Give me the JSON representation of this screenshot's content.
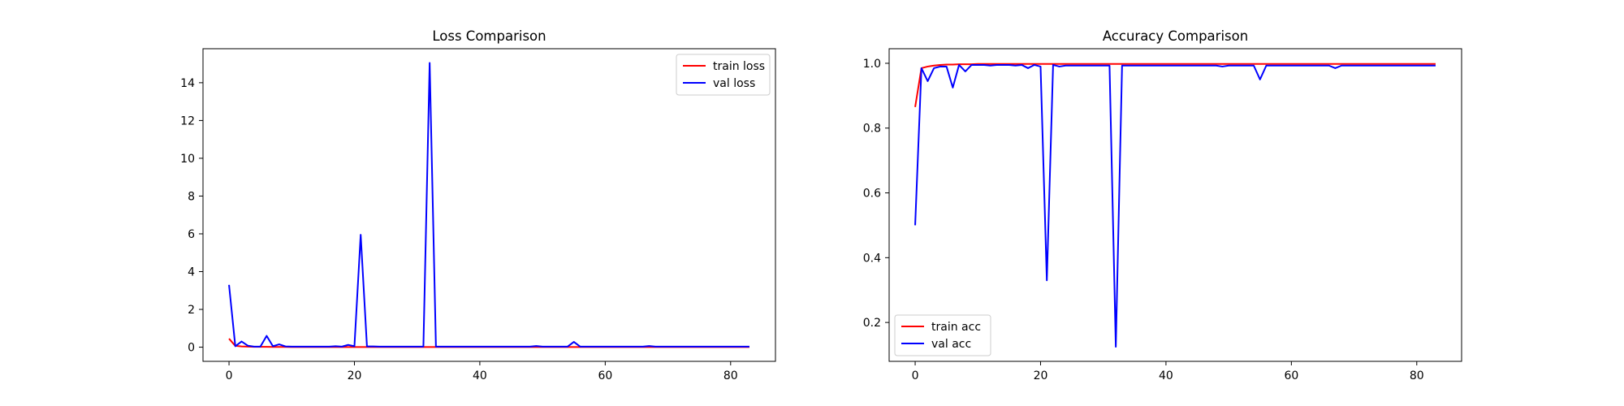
{
  "chart_data": [
    {
      "type": "line",
      "title": "Loss Comparison",
      "xlabel": "",
      "ylabel": "",
      "xlim": [
        -4.15,
        87.15
      ],
      "ylim": [
        -0.75,
        15.8
      ],
      "xticks": [
        0,
        20,
        40,
        60,
        80
      ],
      "yticks": [
        0,
        2,
        4,
        6,
        8,
        10,
        12,
        14
      ],
      "grid": false,
      "legend": "top-right",
      "series": [
        {
          "name": "train loss",
          "color": "#ff0000",
          "x": [
            0,
            1,
            2,
            3,
            4,
            5,
            6,
            7,
            8,
            9,
            10,
            11,
            12,
            13,
            14,
            15,
            16,
            17,
            18,
            19,
            20,
            21,
            22,
            23,
            24,
            25,
            26,
            27,
            28,
            29,
            30,
            31,
            32,
            33,
            34,
            35,
            36,
            37,
            38,
            39,
            40,
            41,
            42,
            43,
            44,
            45,
            46,
            47,
            48,
            49,
            50,
            51,
            52,
            53,
            54,
            55,
            56,
            57,
            58,
            59,
            60,
            61,
            62,
            63,
            64,
            65,
            66,
            67,
            68,
            69,
            70,
            71,
            72,
            73,
            74,
            75,
            76,
            77,
            78,
            79,
            80,
            81,
            82,
            83
          ],
          "values": [
            0.45,
            0.07,
            0.04,
            0.03,
            0.02,
            0.02,
            0.02,
            0.015,
            0.015,
            0.015,
            0.01,
            0.01,
            0.01,
            0.01,
            0.01,
            0.01,
            0.01,
            0.01,
            0.01,
            0.01,
            0.01,
            0.01,
            0.01,
            0.01,
            0.01,
            0.01,
            0.01,
            0.01,
            0.01,
            0.01,
            0.01,
            0.01,
            0.01,
            0.01,
            0.01,
            0.01,
            0.01,
            0.01,
            0.01,
            0.01,
            0.01,
            0.01,
            0.01,
            0.01,
            0.01,
            0.01,
            0.01,
            0.01,
            0.01,
            0.01,
            0.01,
            0.01,
            0.01,
            0.01,
            0.01,
            0.01,
            0.01,
            0.01,
            0.01,
            0.01,
            0.01,
            0.01,
            0.01,
            0.01,
            0.01,
            0.01,
            0.01,
            0.01,
            0.01,
            0.01,
            0.01,
            0.01,
            0.01,
            0.01,
            0.01,
            0.01,
            0.01,
            0.01,
            0.01,
            0.01,
            0.01,
            0.01,
            0.01,
            0.01
          ]
        },
        {
          "name": "val loss",
          "color": "#0000ff",
          "x": [
            0,
            1,
            2,
            3,
            4,
            5,
            6,
            7,
            8,
            9,
            10,
            11,
            12,
            13,
            14,
            15,
            16,
            17,
            18,
            19,
            20,
            21,
            22,
            23,
            24,
            25,
            26,
            27,
            28,
            29,
            30,
            31,
            32,
            33,
            34,
            35,
            36,
            37,
            38,
            39,
            40,
            41,
            42,
            43,
            44,
            45,
            46,
            47,
            48,
            49,
            50,
            51,
            52,
            53,
            54,
            55,
            56,
            57,
            58,
            59,
            60,
            61,
            62,
            63,
            64,
            65,
            66,
            67,
            68,
            69,
            70,
            71,
            72,
            73,
            74,
            75,
            76,
            77,
            78,
            79,
            80,
            81,
            82,
            83
          ],
          "values": [
            3.3,
            0.05,
            0.3,
            0.08,
            0.03,
            0.03,
            0.6,
            0.05,
            0.15,
            0.04,
            0.03,
            0.03,
            0.03,
            0.03,
            0.03,
            0.03,
            0.03,
            0.05,
            0.03,
            0.12,
            0.05,
            5.95,
            0.04,
            0.04,
            0.03,
            0.03,
            0.03,
            0.03,
            0.03,
            0.03,
            0.03,
            0.03,
            15.05,
            0.03,
            0.03,
            0.03,
            0.03,
            0.03,
            0.03,
            0.03,
            0.03,
            0.03,
            0.03,
            0.03,
            0.03,
            0.03,
            0.03,
            0.03,
            0.03,
            0.06,
            0.03,
            0.03,
            0.03,
            0.03,
            0.03,
            0.28,
            0.03,
            0.03,
            0.03,
            0.03,
            0.03,
            0.03,
            0.03,
            0.03,
            0.03,
            0.03,
            0.03,
            0.06,
            0.03,
            0.03,
            0.03,
            0.03,
            0.03,
            0.03,
            0.03,
            0.03,
            0.03,
            0.03,
            0.03,
            0.03,
            0.03,
            0.03,
            0.03,
            0.03
          ]
        }
      ]
    },
    {
      "type": "line",
      "title": "Accuracy Comparison",
      "xlabel": "",
      "ylabel": "",
      "xlim": [
        -4.15,
        87.15
      ],
      "ylim": [
        0.08,
        1.045
      ],
      "xticks": [
        0,
        20,
        40,
        60,
        80
      ],
      "yticks": [
        0.2,
        0.4,
        0.6,
        0.8,
        1.0
      ],
      "ytick_labels": [
        "0.2",
        "0.4",
        "0.6",
        "0.8",
        "1.0"
      ],
      "grid": false,
      "legend": "bottom-left",
      "series": [
        {
          "name": "train acc",
          "color": "#ff0000",
          "x": [
            0,
            1,
            2,
            3,
            4,
            5,
            6,
            7,
            8,
            9,
            10,
            11,
            12,
            13,
            14,
            15,
            16,
            17,
            18,
            19,
            20,
            21,
            22,
            23,
            24,
            25,
            26,
            27,
            28,
            29,
            30,
            31,
            32,
            33,
            34,
            35,
            36,
            37,
            38,
            39,
            40,
            41,
            42,
            43,
            44,
            45,
            46,
            47,
            48,
            49,
            50,
            51,
            52,
            53,
            54,
            55,
            56,
            57,
            58,
            59,
            60,
            61,
            62,
            63,
            64,
            65,
            66,
            67,
            68,
            69,
            70,
            71,
            72,
            73,
            74,
            75,
            76,
            77,
            78,
            79,
            80,
            81,
            82,
            83
          ],
          "values": [
            0.865,
            0.985,
            0.99,
            0.993,
            0.995,
            0.996,
            0.996,
            0.997,
            0.997,
            0.997,
            0.998,
            0.998,
            0.998,
            0.998,
            0.998,
            0.998,
            0.998,
            0.998,
            0.998,
            0.998,
            0.998,
            0.998,
            0.998,
            0.998,
            0.998,
            0.998,
            0.998,
            0.998,
            0.998,
            0.998,
            0.998,
            0.998,
            0.998,
            0.998,
            0.998,
            0.998,
            0.998,
            0.998,
            0.998,
            0.998,
            0.998,
            0.998,
            0.998,
            0.998,
            0.998,
            0.998,
            0.998,
            0.998,
            0.998,
            0.998,
            0.998,
            0.998,
            0.998,
            0.998,
            0.998,
            0.998,
            0.998,
            0.998,
            0.998,
            0.998,
            0.998,
            0.998,
            0.998,
            0.998,
            0.998,
            0.998,
            0.998,
            0.998,
            0.998,
            0.998,
            0.998,
            0.998,
            0.998,
            0.998,
            0.998,
            0.998,
            0.998,
            0.998,
            0.998,
            0.998,
            0.998,
            0.998,
            0.998,
            0.998
          ]
        },
        {
          "name": "val acc",
          "color": "#0000ff",
          "x": [
            0,
            1,
            2,
            3,
            4,
            5,
            6,
            7,
            8,
            9,
            10,
            11,
            12,
            13,
            14,
            15,
            16,
            17,
            18,
            19,
            20,
            21,
            22,
            23,
            24,
            25,
            26,
            27,
            28,
            29,
            30,
            31,
            32,
            33,
            34,
            35,
            36,
            37,
            38,
            39,
            40,
            41,
            42,
            43,
            44,
            45,
            46,
            47,
            48,
            49,
            50,
            51,
            52,
            53,
            54,
            55,
            56,
            57,
            58,
            59,
            60,
            61,
            62,
            63,
            64,
            65,
            66,
            67,
            68,
            69,
            70,
            71,
            72,
            73,
            74,
            75,
            76,
            77,
            78,
            79,
            80,
            81,
            82,
            83
          ],
          "values": [
            0.5,
            0.985,
            0.945,
            0.985,
            0.99,
            0.99,
            0.925,
            0.995,
            0.975,
            0.995,
            0.995,
            0.995,
            0.993,
            0.995,
            0.995,
            0.995,
            0.993,
            0.995,
            0.985,
            0.995,
            0.99,
            0.33,
            0.995,
            0.99,
            0.993,
            0.993,
            0.993,
            0.993,
            0.993,
            0.993,
            0.993,
            0.993,
            0.125,
            0.993,
            0.993,
            0.993,
            0.993,
            0.993,
            0.993,
            0.993,
            0.993,
            0.993,
            0.993,
            0.993,
            0.993,
            0.993,
            0.993,
            0.993,
            0.993,
            0.99,
            0.993,
            0.993,
            0.993,
            0.993,
            0.993,
            0.95,
            0.993,
            0.993,
            0.993,
            0.993,
            0.993,
            0.993,
            0.993,
            0.993,
            0.993,
            0.993,
            0.993,
            0.985,
            0.993,
            0.993,
            0.993,
            0.993,
            0.993,
            0.993,
            0.993,
            0.993,
            0.993,
            0.993,
            0.993,
            0.993,
            0.993,
            0.993,
            0.993,
            0.993
          ]
        }
      ]
    }
  ]
}
